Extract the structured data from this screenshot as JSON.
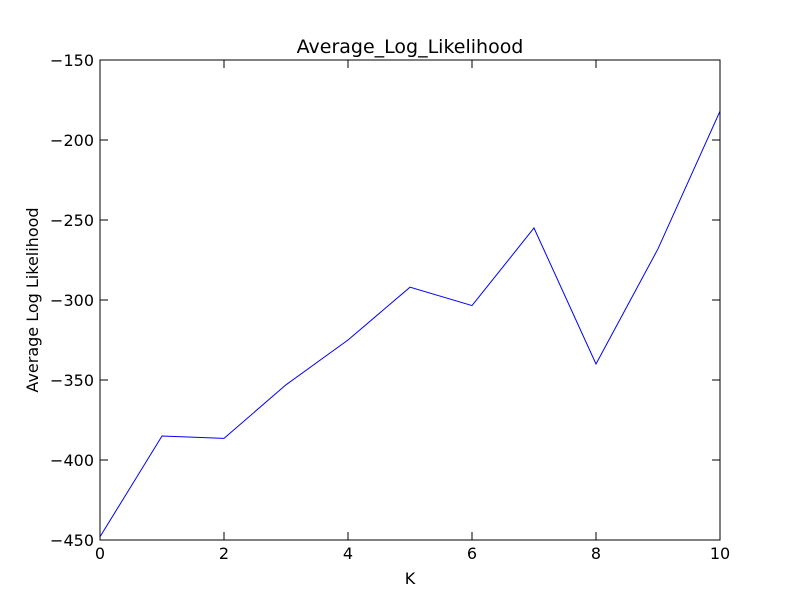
{
  "chart_data": {
    "type": "line",
    "title": "Average_Log_Likelihood",
    "xlabel": "K",
    "ylabel": "Average Log Likelihood",
    "xlim": [
      0,
      10
    ],
    "ylim": [
      -450,
      -150
    ],
    "xticks": [
      0,
      2,
      4,
      6,
      8,
      10
    ],
    "yticks": [
      -450,
      -400,
      -350,
      -300,
      -250,
      -200,
      -150
    ],
    "x": [
      0,
      1,
      2,
      3,
      4,
      5,
      6,
      7,
      8,
      9,
      10
    ],
    "series": [
      {
        "color": "#0000ff",
        "values": [
          -448,
          -385,
          -386.5,
          -353,
          -325,
          -292,
          -303.5,
          -255,
          -340,
          -268,
          -182
        ]
      }
    ],
    "grid": false,
    "legend": "none"
  }
}
